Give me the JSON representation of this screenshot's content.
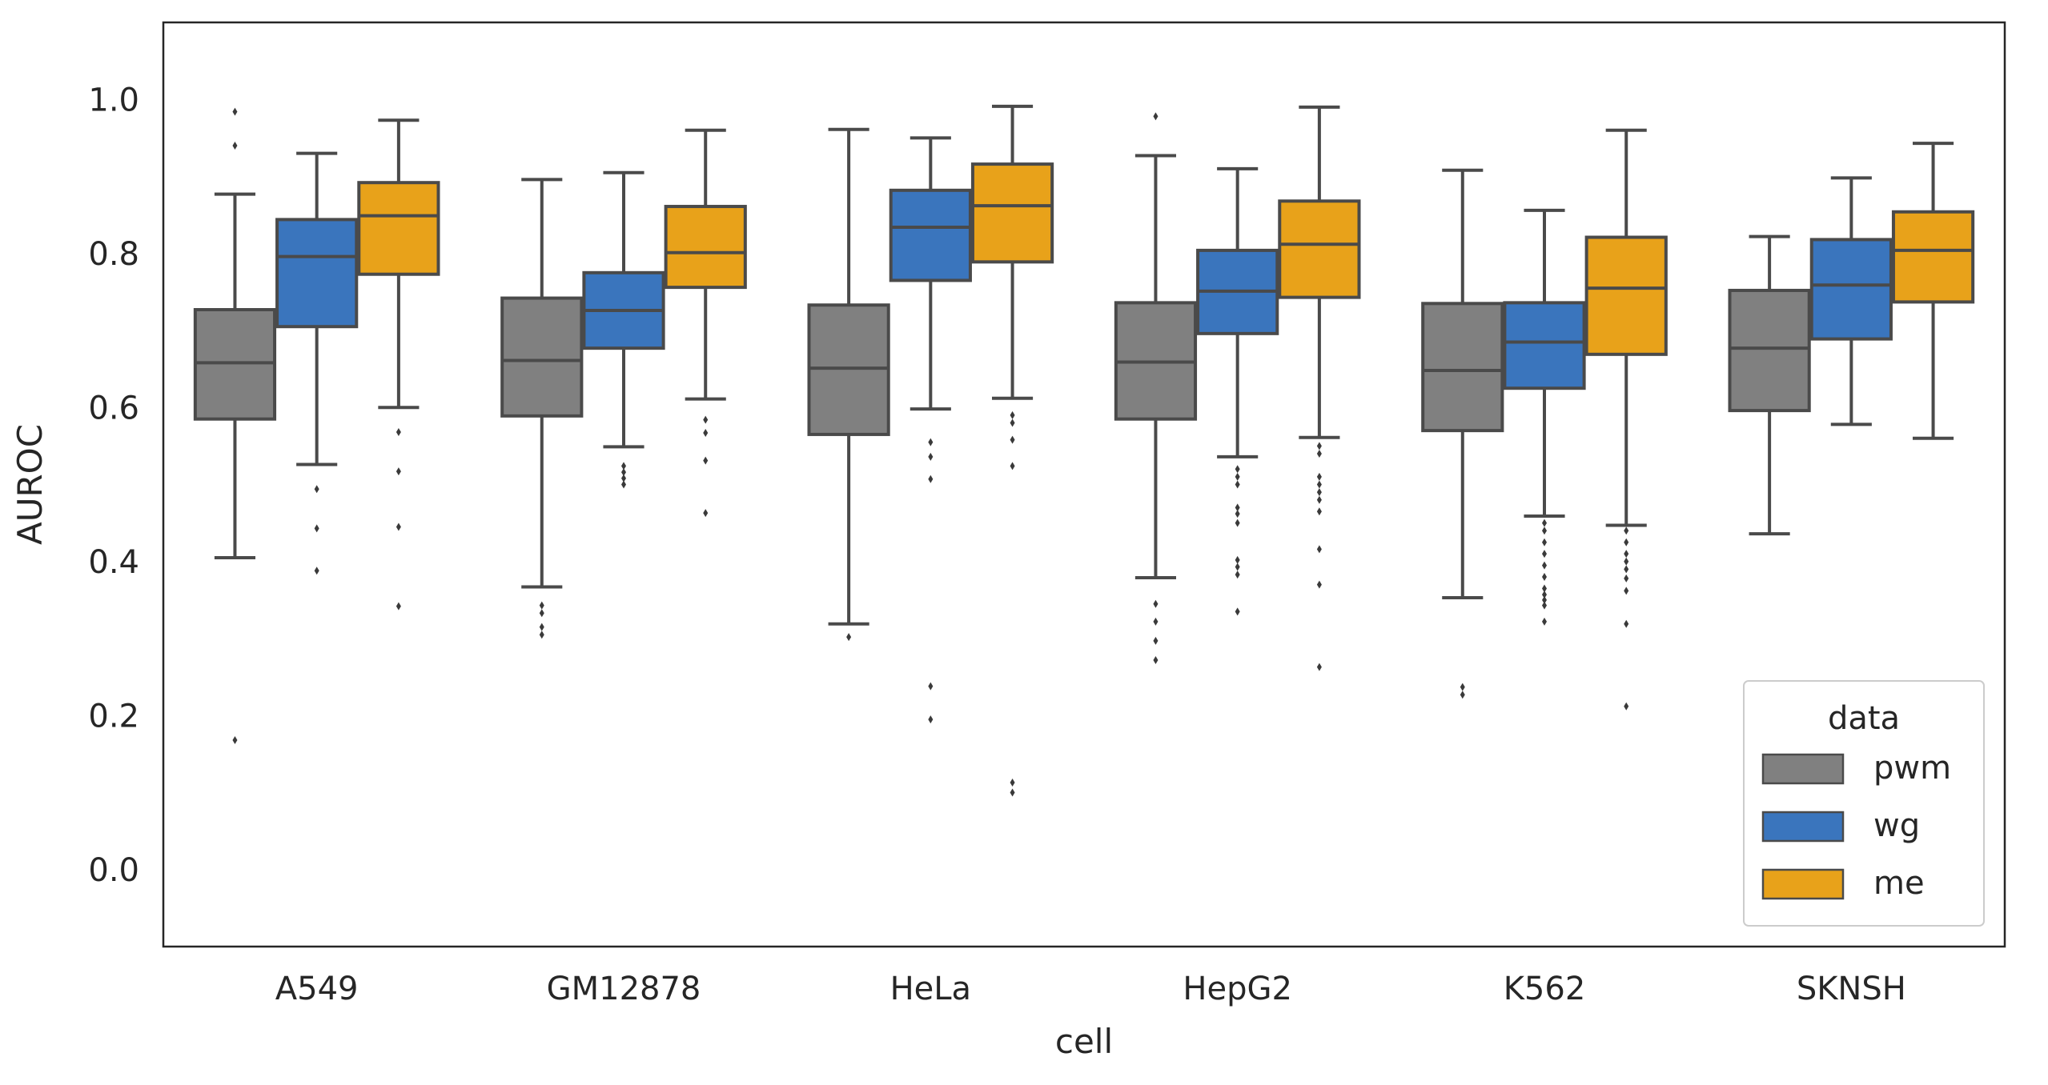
{
  "chart_data": {
    "type": "box",
    "xlabel": "cell",
    "ylabel": "AUROC",
    "ylim": [
      -0.1,
      1.1
    ],
    "yticks": [
      0.0,
      0.2,
      0.4,
      0.6,
      0.8,
      1.0
    ],
    "ytick_labels": [
      "0.0",
      "0.2",
      "0.4",
      "0.6",
      "0.8",
      "1.0"
    ],
    "grid": false,
    "categories": [
      "A549",
      "GM12878",
      "HeLa",
      "HepG2",
      "K562",
      "SKNSH"
    ],
    "legend": {
      "title": "data",
      "placement": "lower-right"
    },
    "series": [
      {
        "name": "pwm",
        "color": "#808080",
        "boxes": [
          {
            "whislo": 0.405,
            "q1": 0.585,
            "med": 0.658,
            "q3": 0.727,
            "whishi": 0.877,
            "fliers": [
              0.168,
              0.94,
              0.984
            ]
          },
          {
            "whislo": 0.367,
            "q1": 0.589,
            "med": 0.661,
            "q3": 0.742,
            "whishi": 0.896,
            "fliers": [
              0.305,
              0.315,
              0.333,
              0.343
            ]
          },
          {
            "whislo": 0.319,
            "q1": 0.565,
            "med": 0.651,
            "q3": 0.733,
            "whishi": 0.961,
            "fliers": [
              0.302
            ]
          },
          {
            "whislo": 0.379,
            "q1": 0.585,
            "med": 0.659,
            "q3": 0.736,
            "whishi": 0.927,
            "fliers": [
              0.272,
              0.297,
              0.322,
              0.345,
              0.978
            ]
          },
          {
            "whislo": 0.353,
            "q1": 0.57,
            "med": 0.648,
            "q3": 0.735,
            "whishi": 0.908,
            "fliers": [
              0.227,
              0.237
            ]
          },
          {
            "whislo": 0.436,
            "q1": 0.596,
            "med": 0.677,
            "q3": 0.752,
            "whishi": 0.822,
            "fliers": []
          }
        ]
      },
      {
        "name": "wg",
        "color": "#3a75bd",
        "boxes": [
          {
            "whislo": 0.526,
            "q1": 0.705,
            "med": 0.796,
            "q3": 0.844,
            "whishi": 0.93,
            "fliers": [
              0.388,
              0.443,
              0.494
            ]
          },
          {
            "whislo": 0.549,
            "q1": 0.677,
            "med": 0.726,
            "q3": 0.775,
            "whishi": 0.905,
            "fliers": [
              0.5,
              0.508,
              0.516,
              0.524
            ]
          },
          {
            "whislo": 0.598,
            "q1": 0.765,
            "med": 0.834,
            "q3": 0.882,
            "whishi": 0.95,
            "fliers": [
              0.195,
              0.238,
              0.507,
              0.536,
              0.555
            ]
          },
          {
            "whislo": 0.536,
            "q1": 0.696,
            "med": 0.751,
            "q3": 0.804,
            "whishi": 0.91,
            "fliers": [
              0.335,
              0.383,
              0.393,
              0.402,
              0.45,
              0.462,
              0.47,
              0.5,
              0.51,
              0.52
            ]
          },
          {
            "whislo": 0.459,
            "q1": 0.625,
            "med": 0.685,
            "q3": 0.736,
            "whishi": 0.856,
            "fliers": [
              0.322,
              0.343,
              0.35,
              0.357,
              0.365,
              0.38,
              0.395,
              0.41,
              0.425,
              0.44,
              0.45
            ]
          },
          {
            "whislo": 0.578,
            "q1": 0.689,
            "med": 0.759,
            "q3": 0.818,
            "whishi": 0.898,
            "fliers": []
          }
        ]
      },
      {
        "name": "me",
        "color": "#e8a21a",
        "boxes": [
          {
            "whislo": 0.6,
            "q1": 0.773,
            "med": 0.849,
            "q3": 0.892,
            "whishi": 0.973,
            "fliers": [
              0.342,
              0.445,
              0.517,
              0.568
            ]
          },
          {
            "whislo": 0.611,
            "q1": 0.756,
            "med": 0.801,
            "q3": 0.861,
            "whishi": 0.96,
            "fliers": [
              0.463,
              0.531,
              0.567,
              0.584
            ]
          },
          {
            "whislo": 0.612,
            "q1": 0.789,
            "med": 0.862,
            "q3": 0.916,
            "whishi": 0.991,
            "fliers": [
              0.1,
              0.113,
              0.524,
              0.558,
              0.58,
              0.59
            ]
          },
          {
            "whislo": 0.561,
            "q1": 0.743,
            "med": 0.812,
            "q3": 0.868,
            "whishi": 0.99,
            "fliers": [
              0.263,
              0.37,
              0.416,
              0.465,
              0.48,
              0.49,
              0.5,
              0.51,
              0.54,
              0.55
            ]
          },
          {
            "whislo": 0.447,
            "q1": 0.669,
            "med": 0.755,
            "q3": 0.821,
            "whishi": 0.96,
            "fliers": [
              0.212,
              0.319,
              0.362,
              0.378,
              0.39,
              0.4,
              0.41,
              0.425,
              0.44
            ]
          },
          {
            "whislo": 0.56,
            "q1": 0.737,
            "med": 0.804,
            "q3": 0.854,
            "whishi": 0.943,
            "fliers": []
          }
        ]
      }
    ]
  }
}
